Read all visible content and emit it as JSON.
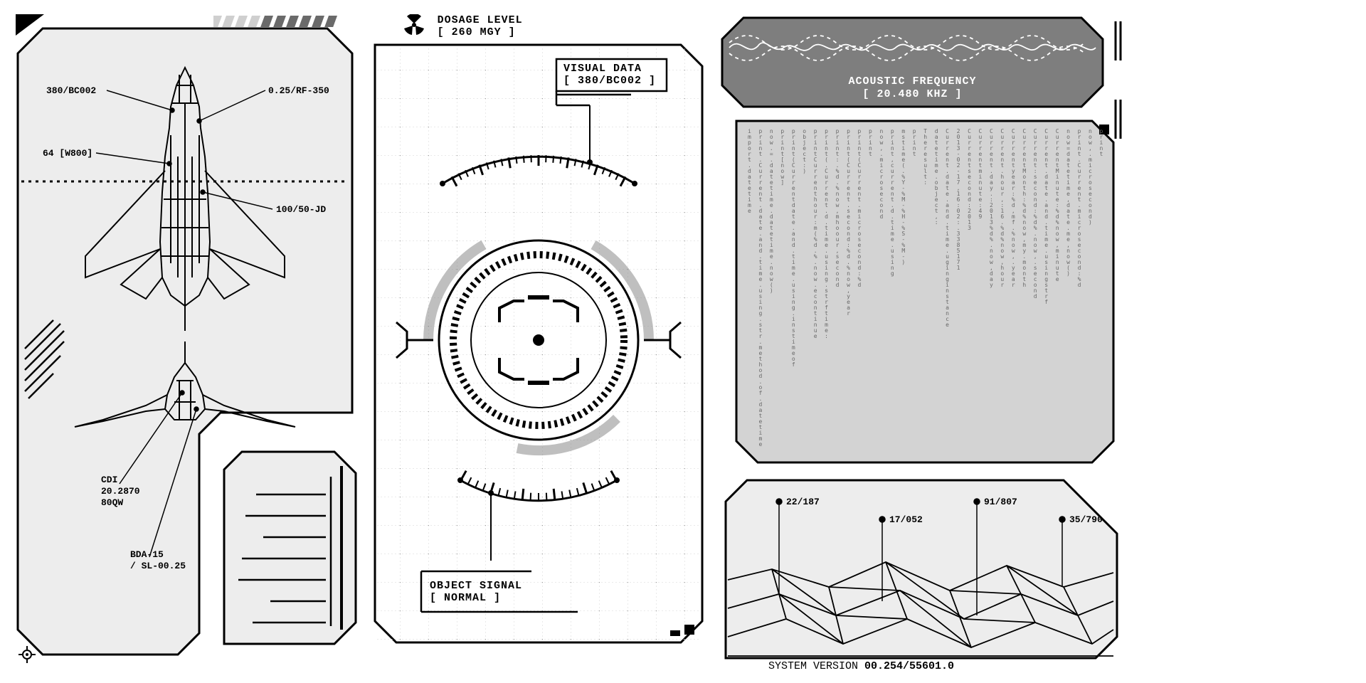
{
  "colors": {
    "bg": "#ffffff",
    "panel_light": "#ededed",
    "panel_med": "#d3d3d3",
    "panel_dark": "#7e7e7e",
    "stroke": "#000000",
    "grid": "#cccccc",
    "text": "#000000"
  },
  "dosage": {
    "label": "DOSAGE LEVEL",
    "value": "[ 260 MGY ]"
  },
  "visual_data": {
    "label": "VISUAL DATA",
    "value": "[ 380/BC002 ]"
  },
  "object_signal": {
    "label": "OBJECT SIGNAL",
    "value": "[ NORMAL ]"
  },
  "acoustic": {
    "label": "ACOUSTIC FREQUENCY",
    "value": "[ 20.480 KHZ ]"
  },
  "system_version": {
    "label": "SYSTEM VERSION ",
    "value": "00.254/55601.0"
  },
  "aircraft_callouts": {
    "c1": "380/BC002",
    "c2": "0.25/RF-350",
    "c3": "64 [W800]",
    "c4": "100/50-JD",
    "c5a": "CDI",
    "c5b": "20.2870",
    "c5c": "80QW",
    "c6a": "BDA-15",
    "c6b": "/ SL-00.25"
  },
  "terrain_callouts": {
    "t1": "22/187",
    "t2": "17/052",
    "t3": "91/807",
    "t4": "35/790"
  },
  "progress": {
    "bars": 10,
    "filled": 6
  },
  "code_matrix": [
    "print",
    "now,.microsecond)",
    "print.Current.microsecond:%d",
    "now=datetime,date.me,now()",
    "CurrentMinute:%d%now,minute",
    "Current.date.and.time.usingstrf",
    "Current:second:%d%.now,.second",
    "CurrentMonth:%d%now,my.month",
    "Currentyear:%d,mf.%now,.year",
    "Current.hour,:16.%d%now,hour",
    "Current.day.:2013%d%.now,day",
    "Currentminute:49",
    "Currentsecond:2013",
    "2013-02-17,16:02:.3385171",
    "Current.date.and.time.uginginstance",
    "datetime.object,:",
    "Theresult:",
    "print",
    "mstime(.%Y-%M-%H-%S-%M-)",
    "print,current.d.time.using",
    "now,.microsecond",
    "print",
    "print(Current.microsecond:%d",
    "print(Current.second:%d.%now,year",
    "print:.%d.%now,mhoour,second",
    "print(.Current.d.time.using.strftime:",
    "printCurrenthour:m(%d.%.now.econtinue",
    "object:)",
    "print(Currentdate.and.time.using.instimeof",
    "print[now]",
    "now.=.datetime.datetime.now()",
    "print.Current.date.and.time.using.str.method.of.datetime",
    "import.datetime"
  ]
}
